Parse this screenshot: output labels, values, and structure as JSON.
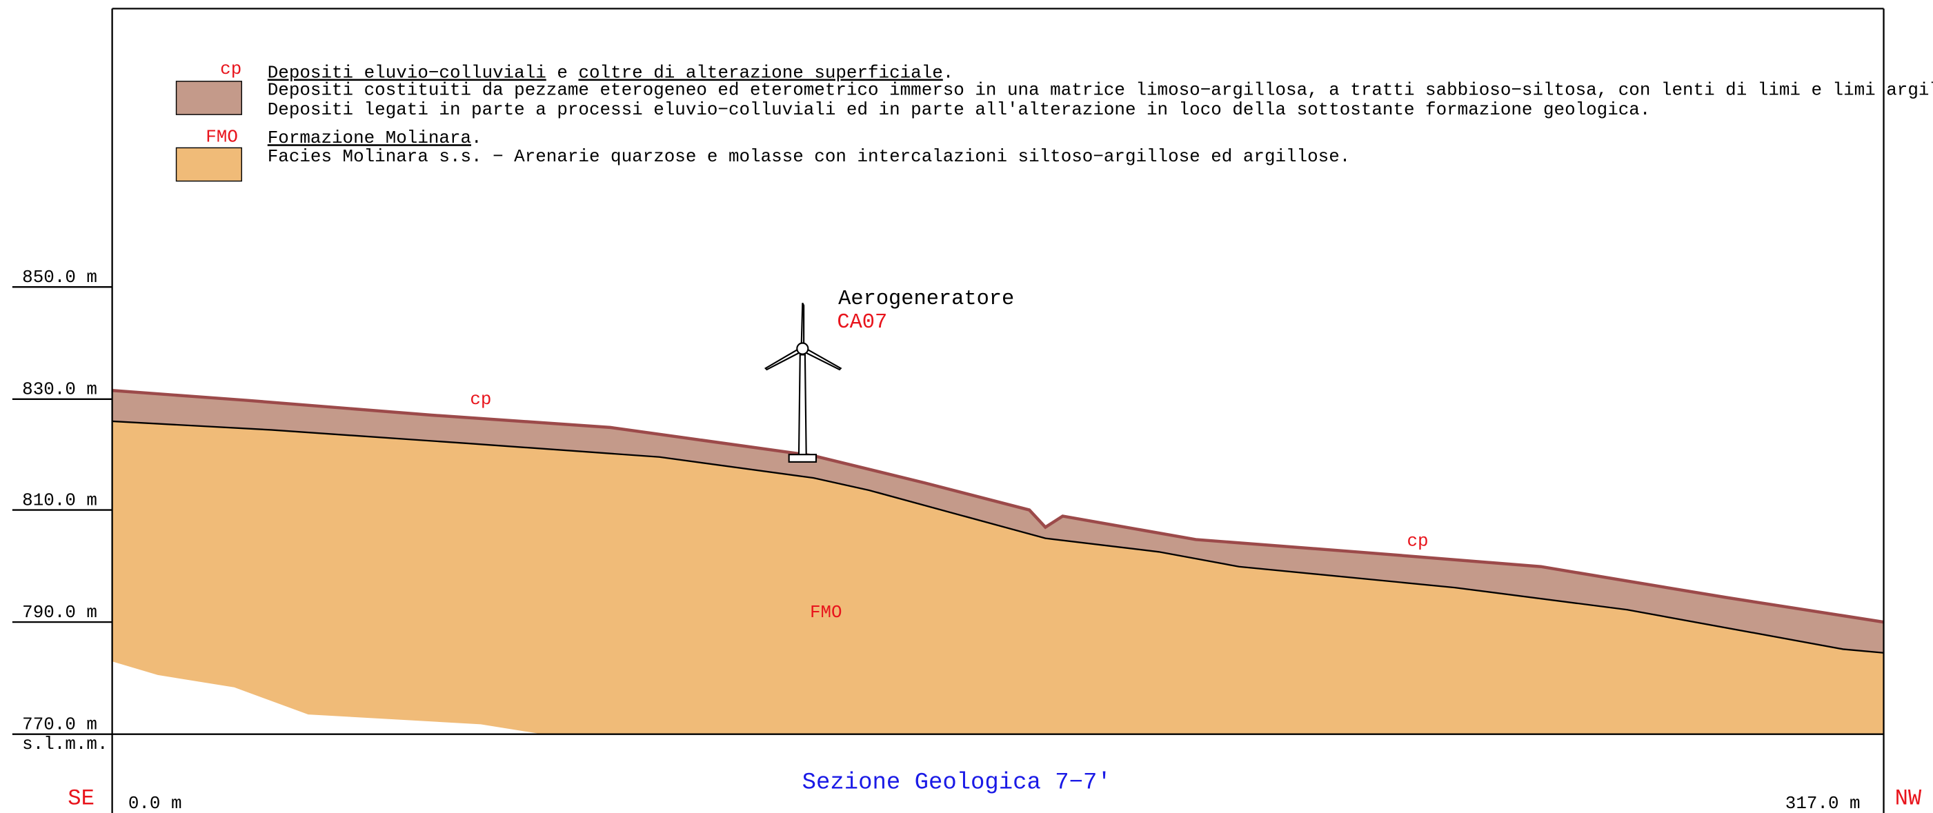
{
  "legend": [
    {
      "code": "cp",
      "title_parts": [
        {
          "text": "Depositi eluvio−colluviali",
          "underline": true
        },
        {
          "text": " e ",
          "underline": false
        },
        {
          "text": "coltre di alterazione superficiale",
          "underline": true
        },
        {
          "text": ".",
          "underline": false
        }
      ],
      "lines": [
        "Depositi costituiti da pezzame eterogeneo ed eterometrico immerso in una matrice limoso−argillosa, a tratti sabbioso−siltosa, con lenti di limi e limi argillosi.",
        "Depositi legati in parte a processi eluvio−colluviali ed in parte all'alterazione in loco della sottostante formazione geologica."
      ]
    },
    {
      "code": "FMO",
      "title_parts": [
        {
          "text": "Formazione Molinara",
          "underline": true
        },
        {
          "text": ".",
          "underline": false
        }
      ],
      "lines": [
        "Facies Molinara s.s. − Arenarie quarzose e molasse con intercalazioni siltoso−argillose ed argillose."
      ]
    }
  ],
  "elevations": [
    "850.0 m",
    "830.0 m",
    "810.0 m",
    "790.0 m",
    "770.0 m"
  ],
  "datum": "s.l.m.m.",
  "turbine": {
    "label": "Aerogeneratore",
    "code": "CA07"
  },
  "section_labels": [
    "cp",
    "cp",
    "FMO"
  ],
  "title": "Sezione Geologica 7−7'",
  "left_end": {
    "direction": "SE",
    "distance": "0.0 m"
  },
  "right_end": {
    "direction": "NW",
    "distance": "317.0 m"
  }
}
